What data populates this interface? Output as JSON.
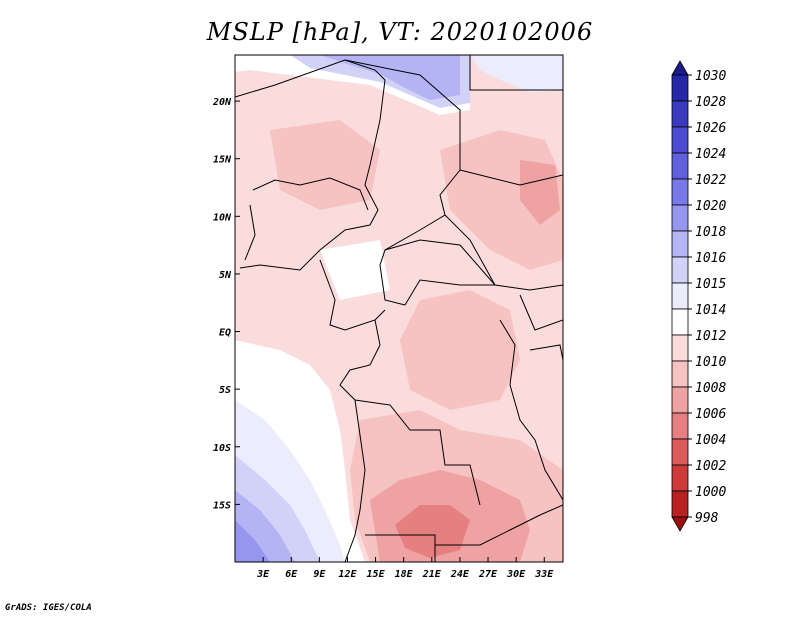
{
  "title": "MSLP [hPa], VT: 2020102006",
  "credit": "GrADS: IGES/COLA",
  "map": {
    "lon_range": [
      0,
      35
    ],
    "lat_range": [
      -20,
      24
    ],
    "lon_ticks": [
      "3E",
      "6E",
      "9E",
      "12E",
      "15E",
      "18E",
      "21E",
      "24E",
      "27E",
      "30E",
      "33E"
    ],
    "lat_ticks": [
      "20N",
      "15N",
      "10N",
      "5N",
      "EQ",
      "5S",
      "10S",
      "15S"
    ]
  },
  "colorbar": {
    "levels": [
      "1030",
      "1028",
      "1026",
      "1024",
      "1022",
      "1020",
      "1018",
      "1016",
      "1015",
      "1014",
      "1012",
      "1010",
      "1008",
      "1006",
      "1004",
      "1002",
      "1000",
      "998"
    ],
    "colors": [
      "#1a1a8c",
      "#2626a8",
      "#3a3ac0",
      "#4c4cd2",
      "#6060dc",
      "#7878e6",
      "#9696ee",
      "#b4b4f4",
      "#d2d2f8",
      "#ececfc",
      "#ffffff",
      "#fbdcdc",
      "#f6c2c2",
      "#eea2a2",
      "#e68080",
      "#dc5c5c",
      "#cc3a3a",
      "#b82222",
      "#9c1010"
    ]
  }
}
